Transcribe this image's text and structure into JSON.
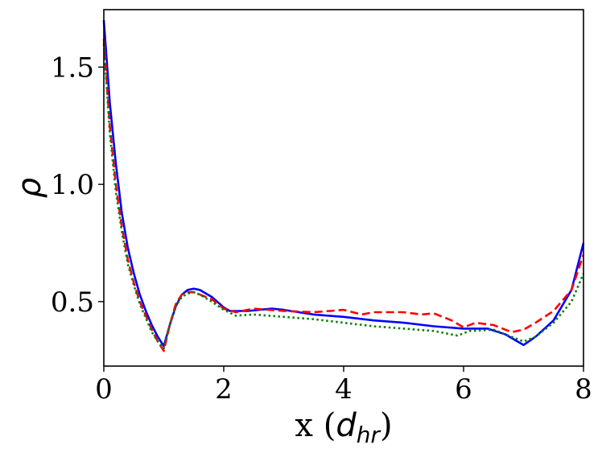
{
  "chart_data": {
    "type": "line",
    "xlabel": {
      "main": "x (",
      "var": "d",
      "sub": "hr",
      "close": ")"
    },
    "ylabel": "ρ",
    "xlim": [
      0,
      8
    ],
    "ylim": [
      0.225,
      1.745
    ],
    "xticks": [
      0,
      2,
      4,
      6,
      8
    ],
    "xtick_labels": [
      "0",
      "2",
      "4",
      "6",
      "8"
    ],
    "yticks": [
      0.5,
      1.0,
      1.5
    ],
    "ytick_labels": [
      "0.5",
      "1.0",
      "1.5"
    ],
    "grid": false,
    "series": [
      {
        "style": "solid",
        "color": "#0000ff",
        "points": [
          [
            0,
            1.7
          ],
          [
            0.1,
            1.35
          ],
          [
            0.2,
            1.09
          ],
          [
            0.3,
            0.88
          ],
          [
            0.4,
            0.73
          ],
          [
            0.5,
            0.62
          ],
          [
            0.6,
            0.53
          ],
          [
            0.7,
            0.46
          ],
          [
            0.8,
            0.4
          ],
          [
            0.9,
            0.35
          ],
          [
            1.0,
            0.31
          ],
          [
            1.1,
            0.4
          ],
          [
            1.2,
            0.48
          ],
          [
            1.3,
            0.53
          ],
          [
            1.4,
            0.55
          ],
          [
            1.5,
            0.555
          ],
          [
            1.6,
            0.55
          ],
          [
            1.8,
            0.52
          ],
          [
            2.0,
            0.475
          ],
          [
            2.1,
            0.46
          ],
          [
            2.4,
            0.46
          ],
          [
            2.8,
            0.47
          ],
          [
            3.0,
            0.465
          ],
          [
            3.5,
            0.445
          ],
          [
            4.0,
            0.435
          ],
          [
            4.5,
            0.42
          ],
          [
            5.0,
            0.41
          ],
          [
            5.5,
            0.395
          ],
          [
            6.0,
            0.385
          ],
          [
            6.4,
            0.385
          ],
          [
            6.7,
            0.36
          ],
          [
            7.0,
            0.315
          ],
          [
            7.2,
            0.35
          ],
          [
            7.5,
            0.42
          ],
          [
            7.8,
            0.55
          ],
          [
            8.0,
            0.75
          ]
        ]
      },
      {
        "style": "dashed",
        "color": "#ff0000",
        "points": [
          [
            0,
            1.62
          ],
          [
            0.1,
            1.25
          ],
          [
            0.2,
            1.0
          ],
          [
            0.3,
            0.82
          ],
          [
            0.4,
            0.68
          ],
          [
            0.5,
            0.58
          ],
          [
            0.6,
            0.5
          ],
          [
            0.7,
            0.44
          ],
          [
            0.8,
            0.38
          ],
          [
            0.9,
            0.33
          ],
          [
            1.0,
            0.29
          ],
          [
            1.1,
            0.4
          ],
          [
            1.2,
            0.49
          ],
          [
            1.3,
            0.53
          ],
          [
            1.4,
            0.54
          ],
          [
            1.5,
            0.54
          ],
          [
            1.6,
            0.53
          ],
          [
            1.8,
            0.51
          ],
          [
            2.0,
            0.47
          ],
          [
            2.2,
            0.455
          ],
          [
            2.5,
            0.47
          ],
          [
            3.0,
            0.46
          ],
          [
            3.5,
            0.455
          ],
          [
            4.0,
            0.465
          ],
          [
            4.3,
            0.445
          ],
          [
            4.5,
            0.455
          ],
          [
            5.0,
            0.455
          ],
          [
            5.3,
            0.445
          ],
          [
            5.5,
            0.45
          ],
          [
            5.8,
            0.42
          ],
          [
            6.0,
            0.39
          ],
          [
            6.2,
            0.41
          ],
          [
            6.5,
            0.4
          ],
          [
            6.8,
            0.37
          ],
          [
            7.0,
            0.38
          ],
          [
            7.2,
            0.41
          ],
          [
            7.5,
            0.46
          ],
          [
            7.8,
            0.55
          ],
          [
            8.0,
            0.7
          ]
        ]
      },
      {
        "style": "dotted",
        "color": "#008000",
        "points": [
          [
            0,
            1.6
          ],
          [
            0.1,
            1.22
          ],
          [
            0.2,
            0.97
          ],
          [
            0.3,
            0.8
          ],
          [
            0.4,
            0.66
          ],
          [
            0.5,
            0.57
          ],
          [
            0.6,
            0.49
          ],
          [
            0.7,
            0.43
          ],
          [
            0.8,
            0.37
          ],
          [
            0.9,
            0.33
          ],
          [
            1.0,
            0.3
          ],
          [
            1.1,
            0.4
          ],
          [
            1.2,
            0.48
          ],
          [
            1.3,
            0.52
          ],
          [
            1.4,
            0.535
          ],
          [
            1.5,
            0.54
          ],
          [
            1.6,
            0.53
          ],
          [
            1.8,
            0.5
          ],
          [
            2.0,
            0.465
          ],
          [
            2.2,
            0.44
          ],
          [
            2.5,
            0.445
          ],
          [
            3.0,
            0.435
          ],
          [
            3.5,
            0.425
          ],
          [
            4.0,
            0.41
          ],
          [
            4.5,
            0.395
          ],
          [
            5.0,
            0.385
          ],
          [
            5.5,
            0.375
          ],
          [
            5.9,
            0.355
          ],
          [
            6.1,
            0.375
          ],
          [
            6.5,
            0.38
          ],
          [
            6.9,
            0.34
          ],
          [
            7.0,
            0.33
          ],
          [
            7.2,
            0.35
          ],
          [
            7.5,
            0.41
          ],
          [
            7.8,
            0.5
          ],
          [
            8.0,
            0.62
          ]
        ]
      }
    ]
  }
}
